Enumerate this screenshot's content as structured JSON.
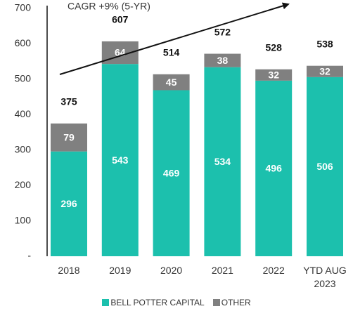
{
  "chart_data": {
    "type": "stacked_bar",
    "annotation": "CAGR +9% (5-YR)",
    "categories": [
      "2018",
      "2019",
      "2020",
      "2021",
      "2022",
      "YTD AUG 2023"
    ],
    "series": [
      {
        "name": "BELL POTTER CAPITAL",
        "color": "#1cc0ad",
        "values": [
          296,
          543,
          469,
          534,
          496,
          506
        ]
      },
      {
        "name": "OTHER",
        "color": "#808080",
        "values": [
          79,
          64,
          45,
          38,
          32,
          32
        ]
      }
    ],
    "totals": [
      375,
      607,
      514,
      572,
      528,
      538
    ],
    "ylim": [
      0,
      700
    ],
    "yticks": [
      {
        "value": 0,
        "label": "-"
      },
      100,
      200,
      300,
      400,
      500,
      600,
      700
    ]
  }
}
